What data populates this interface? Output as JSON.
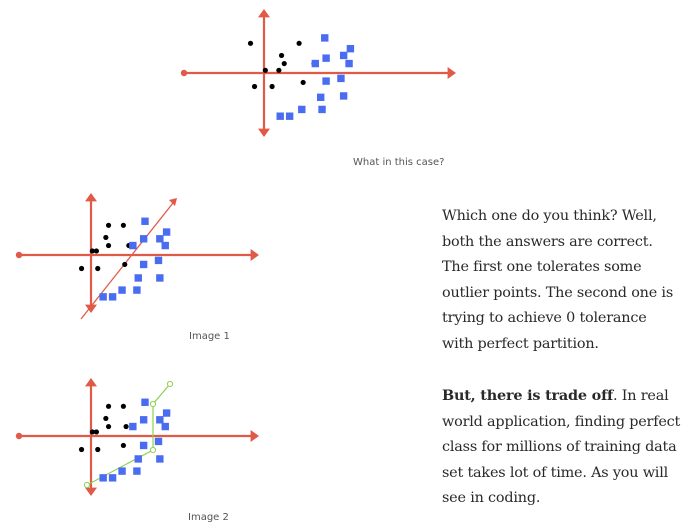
{
  "colors": {
    "axis": "#e05a47",
    "dot": "#000000",
    "square": "#4a6cf0",
    "divider_line": "#e05a47",
    "boundary": "#8fd14f"
  },
  "figures": [
    {
      "caption": "What in this case?",
      "separator": "none",
      "dots": [
        [
          -1,
          2.2
        ],
        [
          2.6,
          2.2
        ],
        [
          1.3,
          1.3
        ],
        [
          1.5,
          0.7
        ],
        [
          3.7,
          0.7
        ],
        [
          1.1,
          0.2
        ],
        [
          0.1,
          0.2
        ],
        [
          -0.7,
          -1
        ],
        [
          0.6,
          -1
        ],
        [
          2.9,
          -0.7
        ]
      ],
      "squares": [
        [
          4.5,
          2.6
        ],
        [
          6.4,
          1.8
        ],
        [
          5.9,
          1.3
        ],
        [
          4.6,
          1.1
        ],
        [
          3.8,
          0.7
        ],
        [
          6.3,
          0.7
        ],
        [
          5.7,
          -0.4
        ],
        [
          4.6,
          -0.6
        ],
        [
          5.9,
          -1.7
        ],
        [
          4.2,
          -1.8
        ],
        [
          2.8,
          -2.7
        ],
        [
          4.3,
          -2.7
        ],
        [
          1.2,
          -3.2
        ],
        [
          1.9,
          -3.2
        ]
      ]
    },
    {
      "caption": "Image 1",
      "separator": "straight-line",
      "dots": [
        [
          1.3,
          2.2
        ],
        [
          2.4,
          2.2
        ],
        [
          1.1,
          1.3
        ],
        [
          1.3,
          0.7
        ],
        [
          2.8,
          0.7
        ],
        [
          0.4,
          0.3
        ],
        [
          0.1,
          0.3
        ],
        [
          -0.7,
          -1
        ],
        [
          0.5,
          -1
        ],
        [
          2.5,
          -0.7
        ]
      ],
      "squares": [
        [
          4.0,
          2.5
        ],
        [
          5.6,
          1.7
        ],
        [
          5.1,
          1.2
        ],
        [
          3.9,
          1.2
        ],
        [
          3.1,
          0.7
        ],
        [
          5.5,
          0.7
        ],
        [
          5.0,
          -0.4
        ],
        [
          3.9,
          -0.7
        ],
        [
          5.1,
          -1.7
        ],
        [
          3.5,
          -1.7
        ],
        [
          2.3,
          -2.6
        ],
        [
          3.4,
          -2.6
        ],
        [
          0.9,
          -3.1
        ],
        [
          1.6,
          -3.1
        ]
      ]
    },
    {
      "caption": "Image 2",
      "separator": "curve",
      "dots": [
        [
          1.3,
          2.2
        ],
        [
          2.4,
          2.2
        ],
        [
          1.1,
          1.3
        ],
        [
          1.3,
          0.7
        ],
        [
          2.6,
          0.7
        ],
        [
          0.4,
          0.3
        ],
        [
          0.1,
          0.3
        ],
        [
          -0.7,
          -1
        ],
        [
          0.5,
          -1
        ],
        [
          2.4,
          -0.7
        ]
      ],
      "squares": [
        [
          4.0,
          2.5
        ],
        [
          5.6,
          1.7
        ],
        [
          5.1,
          1.2
        ],
        [
          3.9,
          1.2
        ],
        [
          3.1,
          0.7
        ],
        [
          5.5,
          0.7
        ],
        [
          5.0,
          -0.4
        ],
        [
          3.9,
          -0.7
        ],
        [
          5.1,
          -1.7
        ],
        [
          3.5,
          -1.7
        ],
        [
          2.3,
          -2.6
        ],
        [
          3.4,
          -2.6
        ],
        [
          0.9,
          -3.1
        ],
        [
          1.6,
          -3.1
        ]
      ]
    }
  ],
  "paragraphs": {
    "p1": "Which one do you think? Well, both the answers are correct. The first one tolerates some outlier points. The second one is trying to achieve 0 tolerance with perfect partition.",
    "p2_bold": "But, there is trade off",
    "p2_rest": ". In real world application, finding perfect class for millions of training data set takes lot of time. As you will see in coding."
  }
}
